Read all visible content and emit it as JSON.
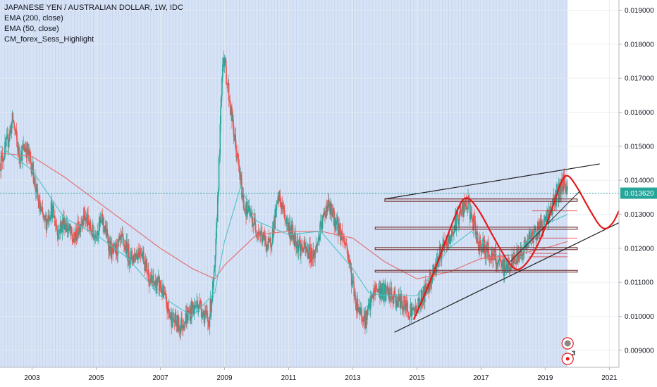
{
  "legend": {
    "title": "JAPANESE YEN / AUSTRALIAN DOLLAR, 1W, IDC",
    "indicators": [
      "EMA (200, close)",
      "EMA (50, close)",
      "CM_forex_Sess_Highlight"
    ]
  },
  "colors": {
    "up": "#26a69a",
    "down": "#ef5350",
    "ema200": "#e57373",
    "ema50": "#4fc3c7",
    "session_bg": "#d6e2f5",
    "last_price": "#26a69a",
    "drawing_red": "#e31b1b",
    "drawing_black": "#222222",
    "zone": "#7a3b3b"
  },
  "chart_data": {
    "type": "candlestick",
    "title": "JAPANESE YEN / AUSTRALIAN DOLLAR, 1W, IDC",
    "x_range": [
      2002.0,
      2021.3
    ],
    "ylim": [
      0.0085,
      0.0193
    ],
    "x_ticks": [
      "2003",
      "2005",
      "2007",
      "2009",
      "2011",
      "2013",
      "2015",
      "2017",
      "2019",
      "2021"
    ],
    "y_ticks": [
      "0.009000",
      "0.010000",
      "0.011000",
      "0.012000",
      "0.013000",
      "0.014000",
      "0.015000",
      "0.016000",
      "0.017000",
      "0.018000",
      "0.019000"
    ],
    "last_price": "0.013620",
    "last_price_value": 0.01362,
    "session_highlight_end": 2019.7,
    "price_path": [
      [
        2002.0,
        0.0145
      ],
      [
        2002.2,
        0.015
      ],
      [
        2002.4,
        0.0158
      ],
      [
        2002.6,
        0.0147
      ],
      [
        2002.8,
        0.015
      ],
      [
        2003.0,
        0.0144
      ],
      [
        2003.2,
        0.0133
      ],
      [
        2003.4,
        0.0127
      ],
      [
        2003.6,
        0.0132
      ],
      [
        2003.8,
        0.0125
      ],
      [
        2004.0,
        0.0128
      ],
      [
        2004.3,
        0.0122
      ],
      [
        2004.6,
        0.013
      ],
      [
        2004.9,
        0.0124
      ],
      [
        2005.2,
        0.0128
      ],
      [
        2005.5,
        0.0118
      ],
      [
        2005.8,
        0.0122
      ],
      [
        2006.1,
        0.0117
      ],
      [
        2006.4,
        0.012
      ],
      [
        2006.7,
        0.011
      ],
      [
        2007.0,
        0.0109
      ],
      [
        2007.3,
        0.01
      ],
      [
        2007.6,
        0.0097
      ],
      [
        2007.9,
        0.0101
      ],
      [
        2008.2,
        0.0104
      ],
      [
        2008.5,
        0.0098
      ],
      [
        2008.7,
        0.0113
      ],
      [
        2008.85,
        0.015
      ],
      [
        2008.95,
        0.0178
      ],
      [
        2009.1,
        0.0168
      ],
      [
        2009.3,
        0.0153
      ],
      [
        2009.6,
        0.0133
      ],
      [
        2010.0,
        0.0126
      ],
      [
        2010.4,
        0.012
      ],
      [
        2010.7,
        0.0135
      ],
      [
        2011.0,
        0.0126
      ],
      [
        2011.4,
        0.012
      ],
      [
        2011.8,
        0.0118
      ],
      [
        2012.2,
        0.0133
      ],
      [
        2012.5,
        0.0127
      ],
      [
        2012.8,
        0.0121
      ],
      [
        2013.1,
        0.0104
      ],
      [
        2013.4,
        0.0099
      ],
      [
        2013.7,
        0.0108
      ],
      [
        2014.0,
        0.0107
      ],
      [
        2014.5,
        0.0104
      ],
      [
        2014.9,
        0.0101
      ],
      [
        2015.3,
        0.0108
      ],
      [
        2015.7,
        0.0118
      ],
      [
        2016.0,
        0.0122
      ],
      [
        2016.3,
        0.013
      ],
      [
        2016.6,
        0.0133
      ],
      [
        2016.9,
        0.0122
      ],
      [
        2017.3,
        0.0118
      ],
      [
        2017.7,
        0.0114
      ],
      [
        2018.0,
        0.0116
      ],
      [
        2018.4,
        0.0121
      ],
      [
        2018.8,
        0.0126
      ],
      [
        2019.0,
        0.0128
      ],
      [
        2019.3,
        0.0134
      ],
      [
        2019.6,
        0.014
      ],
      [
        2019.7,
        0.0136
      ]
    ],
    "ema200": [
      [
        2002.0,
        0.0148
      ],
      [
        2003.0,
        0.0147
      ],
      [
        2004.0,
        0.0141
      ],
      [
        2005.0,
        0.0134
      ],
      [
        2006.0,
        0.0127
      ],
      [
        2007.0,
        0.012
      ],
      [
        2008.0,
        0.0114
      ],
      [
        2008.7,
        0.0111
      ],
      [
        2009.0,
        0.0115
      ],
      [
        2010.0,
        0.0124
      ],
      [
        2011.0,
        0.0125
      ],
      [
        2012.0,
        0.0125
      ],
      [
        2013.0,
        0.0123
      ],
      [
        2014.0,
        0.0116
      ],
      [
        2015.0,
        0.0111
      ],
      [
        2016.0,
        0.0113
      ],
      [
        2017.0,
        0.0117
      ],
      [
        2018.0,
        0.0118
      ],
      [
        2019.0,
        0.012
      ],
      [
        2019.7,
        0.0122
      ]
    ],
    "ema50": [
      [
        2002.0,
        0.015
      ],
      [
        2003.0,
        0.0143
      ],
      [
        2004.0,
        0.0129
      ],
      [
        2005.0,
        0.0124
      ],
      [
        2006.0,
        0.0117
      ],
      [
        2007.0,
        0.0106
      ],
      [
        2008.0,
        0.01
      ],
      [
        2008.7,
        0.0107
      ],
      [
        2009.0,
        0.0122
      ],
      [
        2009.5,
        0.0138
      ],
      [
        2010.0,
        0.0128
      ],
      [
        2011.0,
        0.0124
      ],
      [
        2012.0,
        0.0125
      ],
      [
        2013.0,
        0.0114
      ],
      [
        2013.5,
        0.0107
      ],
      [
        2014.0,
        0.0106
      ],
      [
        2015.0,
        0.0106
      ],
      [
        2016.0,
        0.012
      ],
      [
        2016.7,
        0.0125
      ],
      [
        2017.5,
        0.0118
      ],
      [
        2018.0,
        0.0118
      ],
      [
        2019.0,
        0.0127
      ],
      [
        2019.7,
        0.013
      ]
    ],
    "drawings": {
      "upper_trendline": [
        [
          2014.0,
          0.01345
        ],
        [
          2020.7,
          0.01448
        ]
      ],
      "lower_trendline": [
        [
          2014.3,
          0.00953
        ],
        [
          2021.3,
          0.01275
        ]
      ],
      "inner_trendline": [
        [
          2017.9,
          0.0116
        ],
        [
          2020.1,
          0.0137
        ]
      ],
      "zones": [
        {
          "x": [
            2014.0,
            2020.0
          ],
          "y": [
            0.01345,
            0.01338
          ]
        },
        {
          "x": [
            2013.7,
            2020.0
          ],
          "y": [
            0.01262,
            0.01256
          ]
        },
        {
          "x": [
            2013.7,
            2020.0
          ],
          "y": [
            0.01202,
            0.01196
          ]
        },
        {
          "x": [
            2013.7,
            2020.0
          ],
          "y": [
            0.01135,
            0.0113
          ]
        }
      ],
      "thin_red_lines": [
        {
          "x": [
            2018.6,
            2020.0
          ],
          "y": 0.0131
        },
        {
          "x": [
            2018.5,
            2020.0
          ],
          "y": 0.0123
        },
        {
          "x": [
            2018.5,
            2019.7
          ],
          "y": 0.01185
        },
        {
          "x": [
            2018.5,
            2019.7
          ],
          "y": 0.01175
        }
      ],
      "pattern_path": [
        [
          2014.9,
          0.0099
        ],
        [
          2015.5,
          0.0112
        ],
        [
          2016.2,
          0.013
        ],
        [
          2016.5,
          0.0136
        ],
        [
          2016.9,
          0.0132
        ],
        [
          2017.4,
          0.0123
        ],
        [
          2017.9,
          0.0115
        ],
        [
          2018.2,
          0.0113
        ],
        [
          2018.7,
          0.0119
        ],
        [
          2019.2,
          0.0131
        ],
        [
          2019.5,
          0.014
        ],
        [
          2019.7,
          0.0142
        ],
        [
          2020.0,
          0.0138
        ],
        [
          2020.4,
          0.0131
        ],
        [
          2020.8,
          0.0125
        ],
        [
          2021.1,
          0.0127
        ],
        [
          2021.3,
          0.0131
        ]
      ],
      "event_badge": "3"
    }
  }
}
